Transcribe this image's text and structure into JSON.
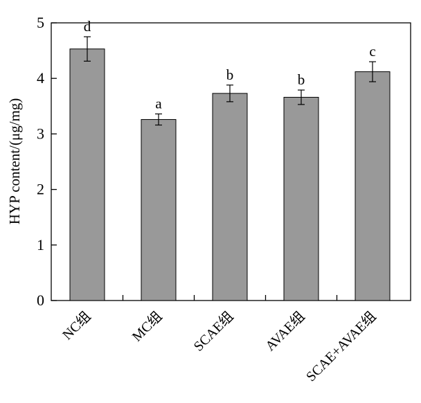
{
  "chart_data": {
    "type": "bar",
    "title": "",
    "xlabel": "",
    "ylabel": "HYP content/(μg/mg)",
    "ylim": [
      0,
      5
    ],
    "yticks": [
      0,
      1,
      2,
      3,
      4,
      5
    ],
    "grid": false,
    "categories": [
      "NC组",
      "MC组",
      "SCAE组",
      "AVAE组",
      "SCAE+AVAE组"
    ],
    "values": [
      4.53,
      3.26,
      3.73,
      3.66,
      4.12
    ],
    "errors": [
      0.22,
      0.1,
      0.15,
      0.13,
      0.18
    ],
    "significance_labels": [
      "d",
      "a",
      "b",
      "b",
      "c"
    ],
    "bar_color": "#999999"
  }
}
